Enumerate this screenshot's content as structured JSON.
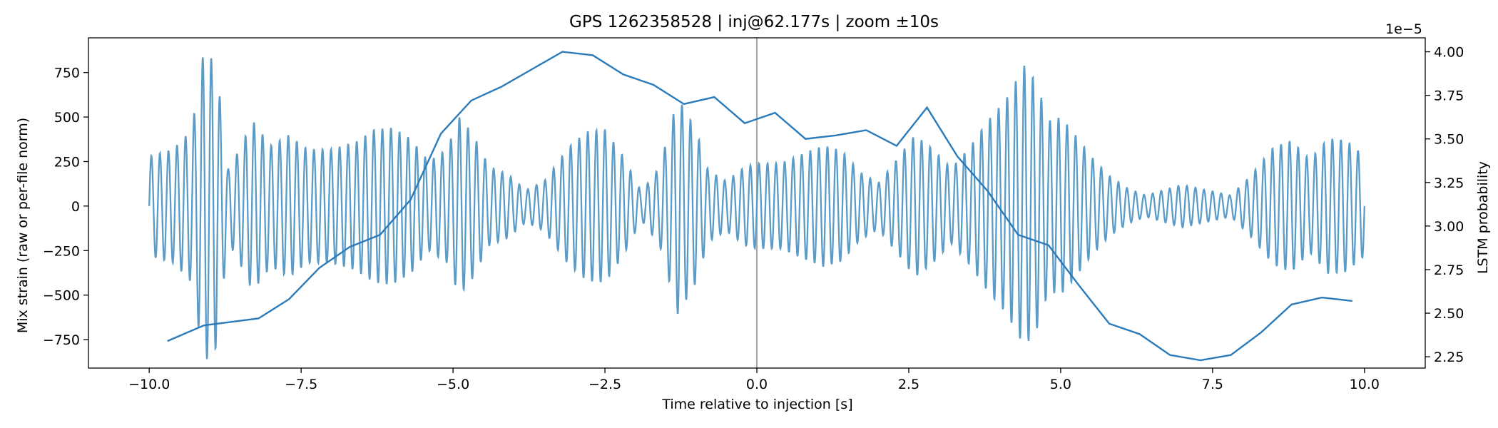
{
  "chart_data": {
    "type": "line",
    "title": "GPS 1262358528 | inj@62.177s | zoom ±10s",
    "xlabel": "Time relative to injection [s]",
    "ylabel": "Mix strain (raw or per-file norm)",
    "y2label": "LSTM probability",
    "y2_offset": "1e−5",
    "xlim": [
      -11,
      11
    ],
    "ylim": [
      -910,
      945
    ],
    "y2lim": [
      2.185,
      4.08
    ],
    "x_ticks": [
      -10.0,
      -7.5,
      -5.0,
      -2.5,
      0.0,
      2.5,
      5.0,
      7.5,
      10.0
    ],
    "x_tick_labels": [
      "−10.0",
      "−7.5",
      "−5.0",
      "−2.5",
      "0.0",
      "2.5",
      "5.0",
      "7.5",
      "10.0"
    ],
    "y_ticks": [
      750,
      500,
      250,
      0,
      -250,
      -500,
      -750
    ],
    "y_tick_labels": [
      "750",
      "500",
      "250",
      "0",
      "−250",
      "−500",
      "−750"
    ],
    "y2_ticks": [
      4.0,
      3.75,
      3.5,
      3.25,
      3.0,
      2.75,
      2.5,
      2.25
    ],
    "y2_tick_labels": [
      "4.00",
      "3.75",
      "3.50",
      "3.25",
      "3.00",
      "2.75",
      "2.50",
      "2.25"
    ],
    "injection_line_x": 0.0,
    "grid": false,
    "legend": "none",
    "colors": {
      "strain": "#5b9bc8",
      "probability": "#2b7bba",
      "injection": "#a8a8a8"
    },
    "series": [
      {
        "axis": "left",
        "style": "oscillatory strain trace, ~7 Hz carrier; envelope [x, amplitude] pairs",
        "carrier_frequency_hz": 7.1,
        "x_range": [
          -10.0,
          10.0
        ],
        "envelope": [
          [
            -10.0,
            280
          ],
          [
            -9.6,
            320
          ],
          [
            -9.3,
            430
          ],
          [
            -9.1,
            880
          ],
          [
            -8.9,
            800
          ],
          [
            -8.7,
            200
          ],
          [
            -8.5,
            330
          ],
          [
            -8.3,
            480
          ],
          [
            -8.0,
            340
          ],
          [
            -7.7,
            400
          ],
          [
            -7.4,
            320
          ],
          [
            -7.0,
            320
          ],
          [
            -6.6,
            360
          ],
          [
            -6.3,
            430
          ],
          [
            -6.0,
            440
          ],
          [
            -5.7,
            380
          ],
          [
            -5.4,
            250
          ],
          [
            -5.1,
            320
          ],
          [
            -4.9,
            500
          ],
          [
            -4.7,
            420
          ],
          [
            -4.4,
            220
          ],
          [
            -4.1,
            180
          ],
          [
            -3.8,
            90
          ],
          [
            -3.5,
            140
          ],
          [
            -3.1,
            330
          ],
          [
            -2.8,
            420
          ],
          [
            -2.5,
            430
          ],
          [
            -2.2,
            280
          ],
          [
            -1.9,
            80
          ],
          [
            -1.6,
            220
          ],
          [
            -1.3,
            610
          ],
          [
            -1.0,
            430
          ],
          [
            -0.8,
            200
          ],
          [
            -0.5,
            140
          ],
          [
            -0.2,
            220
          ],
          [
            0.0,
            240
          ],
          [
            0.4,
            240
          ],
          [
            0.8,
            300
          ],
          [
            1.1,
            340
          ],
          [
            1.4,
            310
          ],
          [
            1.7,
            190
          ],
          [
            2.0,
            130
          ],
          [
            2.3,
            260
          ],
          [
            2.6,
            400
          ],
          [
            2.9,
            320
          ],
          [
            3.2,
            210
          ],
          [
            3.5,
            330
          ],
          [
            3.8,
            480
          ],
          [
            4.1,
            600
          ],
          [
            4.4,
            790
          ],
          [
            4.6,
            700
          ],
          [
            4.8,
            480
          ],
          [
            5.0,
            500
          ],
          [
            5.2,
            420
          ],
          [
            5.5,
            280
          ],
          [
            5.8,
            170
          ],
          [
            6.1,
            100
          ],
          [
            6.4,
            60
          ],
          [
            6.7,
            90
          ],
          [
            7.0,
            120
          ],
          [
            7.4,
            90
          ],
          [
            7.8,
            60
          ],
          [
            8.1,
            160
          ],
          [
            8.5,
            330
          ],
          [
            8.8,
            370
          ],
          [
            9.1,
            260
          ],
          [
            9.4,
            380
          ],
          [
            9.7,
            370
          ],
          [
            10.0,
            280
          ]
        ]
      },
      {
        "axis": "right",
        "x": [
          -9.7,
          -9.1,
          -8.2,
          -7.7,
          -7.2,
          -6.7,
          -6.2,
          -5.7,
          -5.2,
          -4.7,
          -4.2,
          -3.7,
          -3.2,
          -2.7,
          -2.2,
          -1.7,
          -1.2,
          -0.7,
          -0.2,
          0.3,
          0.8,
          1.3,
          1.8,
          2.3,
          2.8,
          3.3,
          3.8,
          4.3,
          4.8,
          5.3,
          5.8,
          6.3,
          6.8,
          7.3,
          7.8,
          8.3,
          8.8,
          9.3,
          9.8
        ],
        "values": [
          2.34,
          2.43,
          2.47,
          2.58,
          2.76,
          2.88,
          2.95,
          3.15,
          3.53,
          3.72,
          3.8,
          3.9,
          4.0,
          3.98,
          3.87,
          3.81,
          3.7,
          3.74,
          3.59,
          3.65,
          3.5,
          3.52,
          3.55,
          3.46,
          3.68,
          3.4,
          3.2,
          2.95,
          2.89,
          2.66,
          2.44,
          2.38,
          2.26,
          2.23,
          2.26,
          2.39,
          2.55,
          2.59,
          2.57
        ]
      }
    ]
  }
}
